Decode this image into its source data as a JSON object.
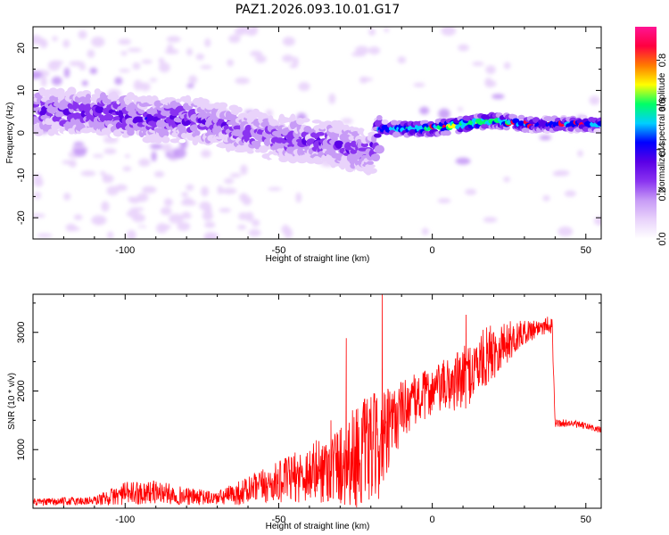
{
  "chart_data": [
    {
      "type": "heatmap",
      "title": "PAZ1.2026.093.10.01.G17",
      "xlabel": "Height of straight line (km)",
      "ylabel": "Frequency (Hz)",
      "xlim": [
        -130,
        55
      ],
      "ylim": [
        -25,
        25
      ],
      "xticks": [
        -100,
        -50,
        0,
        50
      ],
      "xtick_labels": [
        "-100",
        "-50",
        "0",
        "50"
      ],
      "yticks": [
        -20,
        -10,
        0,
        10,
        20
      ],
      "ytick_labels": [
        "-20",
        "-10",
        "0",
        "10",
        "20"
      ],
      "colorbar": {
        "label": "Normalized spectral amplitude",
        "range": [
          0,
          0.95
        ],
        "ticks": [
          0.0,
          0.2,
          0.4,
          0.6,
          0.8
        ],
        "tick_labels": [
          "0.0",
          "0.2",
          "0.4",
          "0.6",
          "0.8"
        ],
        "colors": [
          "#ffffff",
          "#e9d3fb",
          "#c79bf6",
          "#8a33f0",
          "#5a00e6",
          "#0000ff",
          "#00cfff",
          "#00ff66",
          "#ffff00",
          "#ff7a00",
          "#ff0040",
          "#ff1493"
        ]
      },
      "ridge": {
        "x": [
          -123,
          -110,
          -100,
          -90,
          -80,
          -70,
          -60,
          -50,
          -40,
          -30,
          -25,
          -20,
          -17,
          -10,
          0,
          10,
          20,
          30,
          40,
          50,
          55
        ],
        "y": [
          5,
          5,
          4,
          3,
          3,
          2,
          0,
          -1,
          -2,
          -3,
          -4,
          -5,
          1,
          1,
          1,
          2,
          3,
          2,
          2,
          2,
          2
        ],
        "amplitude": [
          0.28,
          0.3,
          0.32,
          0.3,
          0.28,
          0.26,
          0.24,
          0.25,
          0.26,
          0.28,
          0.3,
          0.22,
          0.45,
          0.55,
          0.62,
          0.7,
          0.65,
          0.5,
          0.48,
          0.5,
          0.5
        ]
      }
    },
    {
      "type": "line",
      "xlabel": "Height of straight line (km)",
      "ylabel": "SNR (10 * v/v)",
      "xlim": [
        -130,
        55
      ],
      "ylim": [
        0,
        3650
      ],
      "xticks": [
        -100,
        -50,
        0,
        50
      ],
      "xtick_labels": [
        "-100",
        "-50",
        "0",
        "50"
      ],
      "yticks": [
        1000,
        2000,
        3000
      ],
      "ytick_labels": [
        "1000",
        "2000",
        "3000"
      ],
      "color": "#ff0000",
      "envelope": {
        "x": [
          -130,
          -110,
          -100,
          -90,
          -80,
          -70,
          -60,
          -50,
          -40,
          -30,
          -25,
          -20,
          -16,
          -10,
          0,
          10,
          20,
          30,
          38,
          39,
          40,
          45,
          50,
          55
        ],
        "mean": [
          100,
          130,
          250,
          280,
          200,
          170,
          300,
          450,
          600,
          750,
          900,
          1000,
          1100,
          1700,
          2000,
          2200,
          2700,
          3000,
          3150,
          3100,
          1450,
          1450,
          1400,
          1330
        ],
        "spread": [
          60,
          80,
          200,
          200,
          150,
          120,
          250,
          350,
          500,
          700,
          900,
          950,
          900,
          500,
          400,
          550,
          500,
          200,
          150,
          150,
          70,
          60,
          60,
          60
        ]
      },
      "spikes": [
        {
          "x": -16.3,
          "y": 3650
        },
        {
          "x": -28,
          "y": 2900
        },
        {
          "x": -33,
          "y": 1500
        },
        {
          "x": 11,
          "y": 3300
        },
        {
          "x": 20,
          "y": 2800
        }
      ]
    }
  ]
}
